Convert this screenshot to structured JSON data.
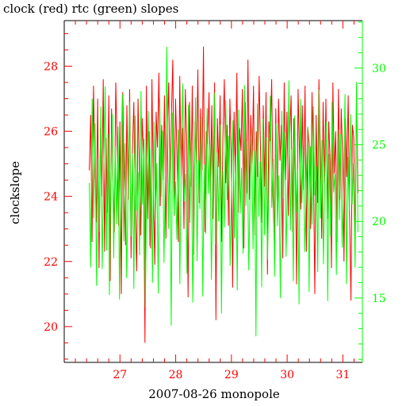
{
  "chart_data": {
    "type": "line",
    "title": "clock (red) rtc (green) slopes",
    "xlabel": "2007-08-26 monopole",
    "ylabel": "clockslope",
    "xlim": [
      26.0,
      31.35
    ],
    "ylim": [
      18.9,
      29.4
    ],
    "y2lim": [
      10.8,
      33.1
    ],
    "x_ticks": [
      27,
      28,
      29,
      30,
      31
    ],
    "y_ticks": [
      20,
      22,
      24,
      26,
      28
    ],
    "y2_ticks": [
      15,
      20,
      25,
      30
    ],
    "x_range": [
      26.45,
      31.27
    ],
    "colors": {
      "clock": "#ff0000",
      "rtc": "#00ff00",
      "axis_left": "#ff0000",
      "axis_right": "#00ff00",
      "frame": "#000000"
    },
    "series": [
      {
        "name": "clock",
        "axis": "left",
        "color": "#ff0000",
        "values": [
          24.8,
          26.5,
          22.6,
          27.4,
          25.1,
          23.2,
          27.0,
          21.8,
          26.1,
          24.0,
          27.6,
          22.3,
          25.8,
          23.5,
          27.1,
          21.4,
          26.7,
          24.4,
          22.9,
          27.5,
          25.6,
          23.1,
          26.3,
          21.0,
          27.2,
          24.7,
          22.5,
          26.8,
          23.9,
          27.3,
          22.1,
          25.4,
          26.9,
          23.6,
          21.7,
          27.0,
          24.9,
          22.8,
          26.4,
          25.2,
          19.5,
          27.4,
          23.3,
          26.0,
          22.4,
          27.6,
          24.2,
          21.9,
          26.6,
          25.5,
          27.8,
          23.7,
          26.2,
          24.5,
          27.1,
          22.7,
          25.9,
          27.5,
          24.1,
          26.5,
          28.2,
          23.4,
          27.0,
          25.3,
          22.6,
          27.7,
          24.6,
          26.1,
          23.0,
          27.3,
          25.7,
          20.9,
          26.9,
          24.3,
          27.4,
          22.2,
          26.3,
          25.0,
          27.9,
          23.8,
          26.7,
          24.8,
          28.6,
          22.9,
          26.0,
          25.6,
          27.2,
          24.0,
          26.8,
          23.3,
          27.5,
          20.2,
          26.4,
          24.9,
          27.1,
          22.6,
          25.8,
          27.6,
          24.4,
          26.2,
          23.1,
          27.0,
          25.2,
          21.2,
          26.6,
          24.7,
          27.8,
          23.5,
          26.1,
          25.4,
          27.3,
          22.4,
          26.9,
          24.1,
          28.2,
          23.9,
          26.5,
          25.0,
          27.4,
          22.8,
          26.0,
          24.6,
          27.7,
          25.5,
          23.2,
          26.8,
          24.3,
          27.2,
          21.6,
          26.3,
          25.7,
          27.6,
          24.0,
          22.5,
          26.7,
          23.7,
          27.0,
          25.1,
          26.2,
          22.1,
          27.5,
          24.5,
          26.6,
          23.4,
          25.9,
          27.1,
          22.9,
          26.4,
          24.8,
          21.3,
          27.3,
          25.3,
          23.6,
          26.8,
          24.2,
          27.4,
          22.3,
          26.1,
          25.6,
          23.0,
          27.2,
          24.9,
          21.0,
          26.5,
          23.8,
          27.6,
          25.4,
          22.7,
          26.9,
          24.4,
          27.0,
          23.3,
          26.3,
          25.1,
          21.8,
          27.5,
          24.7,
          26.0,
          22.6,
          27.3,
          23.9,
          26.7,
          25.2,
          22.0,
          26.4,
          24.6,
          27.1,
          23.5,
          20.8,
          26.2,
          25.8,
          22.4,
          27.4,
          24.1
        ]
      },
      {
        "name": "rtc",
        "axis": "right",
        "color": "#00ff00",
        "values": [
          22.5,
          17.0,
          28.0,
          20.2,
          26.4,
          15.8,
          24.1,
          19.3,
          27.5,
          16.9,
          23.0,
          28.8,
          18.1,
          25.7,
          15.2,
          22.8,
          27.0,
          17.6,
          24.9,
          19.8,
          26.2,
          14.9,
          23.6,
          28.3,
          18.7,
          25.1,
          16.3,
          22.0,
          27.8,
          19.0,
          24.4,
          15.6,
          26.9,
          20.7,
          23.2,
          17.8,
          28.5,
          21.1,
          25.4,
          14.4,
          22.9,
          27.2,
          18.4,
          24.7,
          16.0,
          26.5,
          20.1,
          23.8,
          15.3,
          28.0,
          21.6,
          25.9,
          17.3,
          23.4,
          31.4,
          19.5,
          24.8,
          13.2,
          27.1,
          20.4,
          22.6,
          18.8,
          26.0,
          15.9,
          24.2,
          29.0,
          21.3,
          23.1,
          16.6,
          27.6,
          19.9,
          25.3,
          14.7,
          22.3,
          28.1,
          17.4,
          24.0,
          20.8,
          26.8,
          15.1,
          23.7,
          19.2,
          27.4,
          21.8,
          25.0,
          16.2,
          22.7,
          28.4,
          18.5,
          24.5,
          20.0,
          26.3,
          14.0,
          23.3,
          19.6,
          27.9,
          21.4,
          25.6,
          17.1,
          22.1,
          26.6,
          18.9,
          24.3,
          15.5,
          27.3,
          20.5,
          23.5,
          17.9,
          28.9,
          21.0,
          25.2,
          16.8,
          22.4,
          26.1,
          18.2,
          24.6,
          12.5,
          27.7,
          20.3,
          23.9,
          15.7,
          26.7,
          19.1,
          25.5,
          17.5,
          22.2,
          28.2,
          20.9,
          24.1,
          16.4,
          26.4,
          19.7,
          23.0,
          15.0,
          27.2,
          21.5,
          25.8,
          17.7,
          22.8,
          29.2,
          19.4,
          24.7,
          16.1,
          26.9,
          20.6,
          23.4,
          14.6,
          28.0,
          21.2,
          25.0,
          18.0,
          22.5,
          26.2,
          15.4,
          24.9,
          19.8,
          27.5,
          21.7,
          23.6,
          16.7,
          28.6,
          20.2,
          25.3,
          17.2,
          22.9,
          26.5,
          14.8,
          24.4,
          19.0,
          27.8,
          21.9,
          23.1,
          16.5,
          26.0,
          20.1,
          25.7,
          18.3,
          22.6,
          28.3,
          15.9,
          24.2,
          20.7,
          27.0,
          21.1,
          23.8,
          17.0,
          29.1,
          19.3
        ]
      }
    ]
  }
}
